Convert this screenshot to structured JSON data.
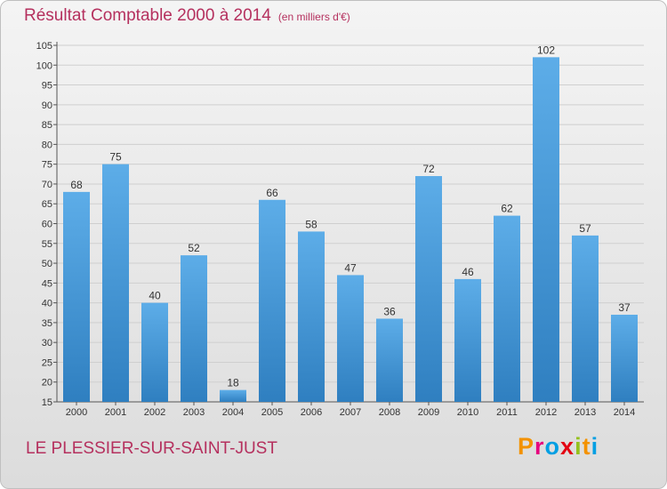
{
  "header": {
    "title": "Résultat Comptable 2000 à 2014",
    "unit": "(en milliers d'€)"
  },
  "footer": {
    "commune": "LE PLESSIER-SUR-SAINT-JUST",
    "logo_text": "Proxiti",
    "logo_colors": [
      "#f39200",
      "#e6007e",
      "#009fe3",
      "#e30613",
      "#95c11f",
      "#f39200",
      "#009fe3"
    ]
  },
  "colors": {
    "bar_light": "#5dade8",
    "bar_dark": "#2f7fc0",
    "title": "#b5305e",
    "grid": "#cfcfcf",
    "background": "#e9e9e9"
  },
  "chart_data": {
    "type": "bar",
    "categories": [
      "2000",
      "2001",
      "2002",
      "2003",
      "2004",
      "2005",
      "2006",
      "2007",
      "2008",
      "2009",
      "2010",
      "2011",
      "2012",
      "2013",
      "2014"
    ],
    "values": [
      68,
      75,
      40,
      52,
      18,
      66,
      58,
      47,
      36,
      72,
      46,
      62,
      102,
      57,
      37
    ],
    "yticks": [
      15,
      20,
      25,
      30,
      35,
      40,
      45,
      50,
      55,
      60,
      65,
      70,
      75,
      80,
      85,
      90,
      95,
      100,
      105
    ],
    "ylim": [
      15,
      105
    ],
    "grid": true,
    "data_labels": true
  }
}
